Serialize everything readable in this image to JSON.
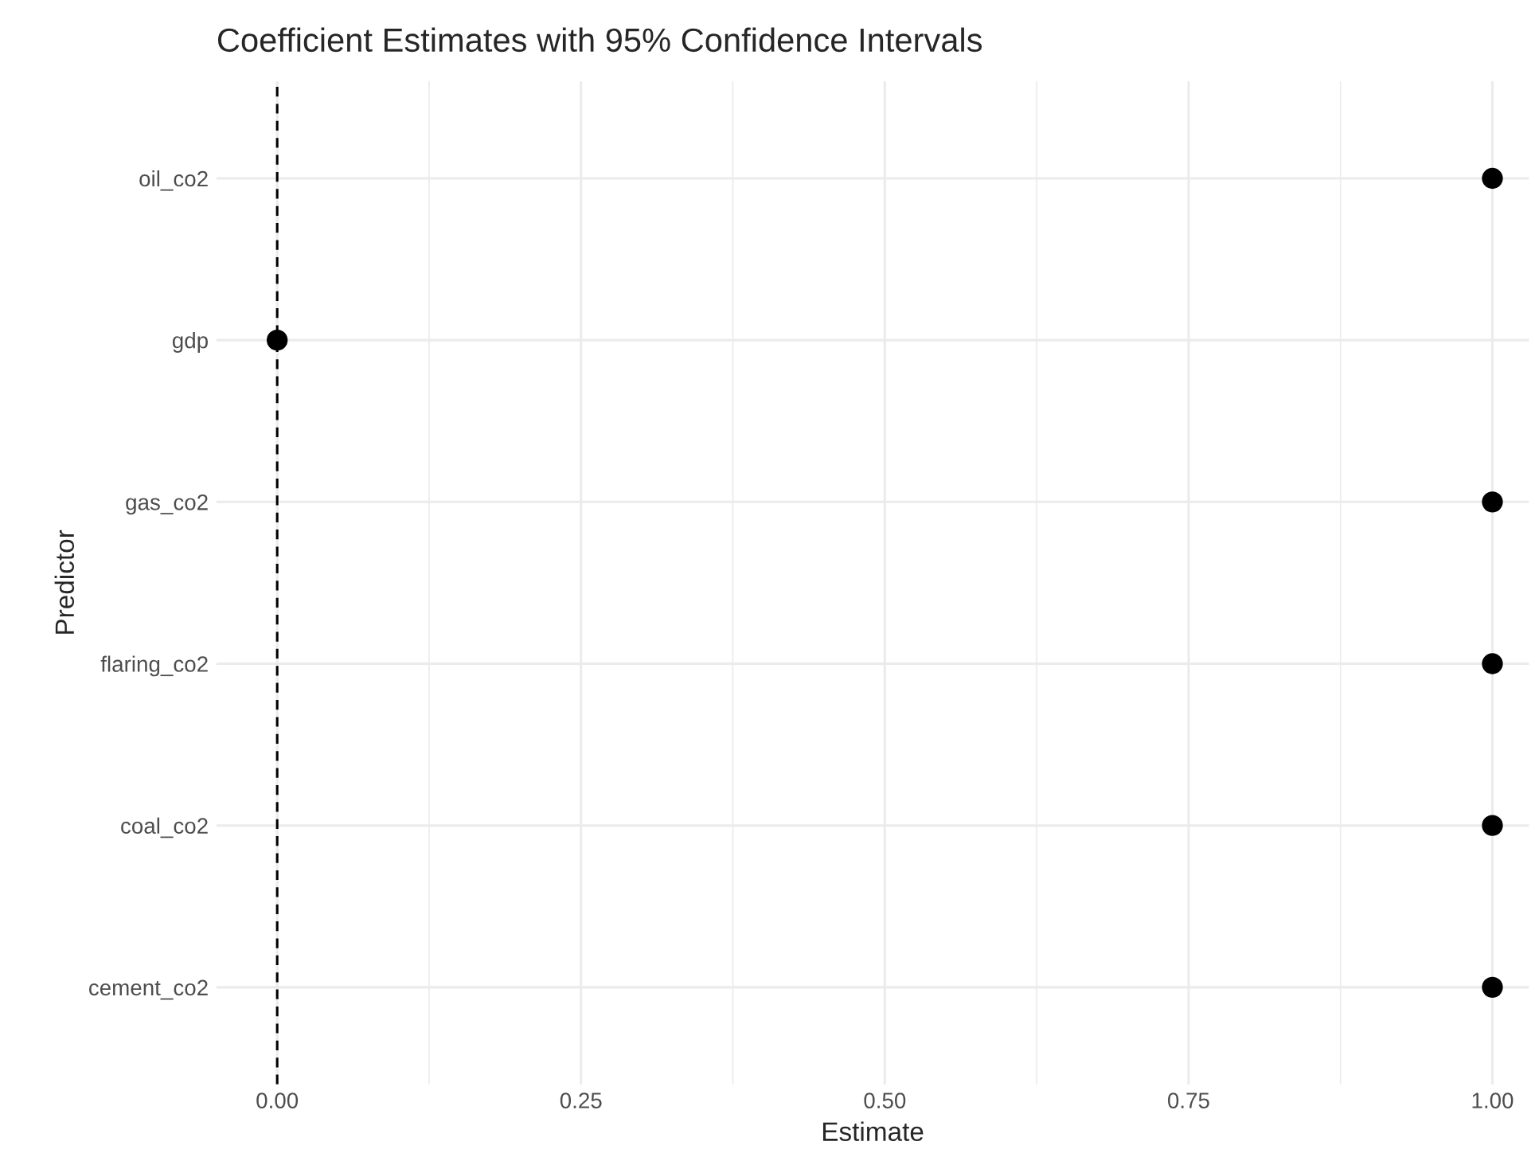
{
  "chart_data": {
    "type": "scatter",
    "orientation": "horizontal",
    "title": "Coefficient Estimates with 95% Confidence Intervals",
    "xlabel": "Estimate",
    "ylabel": "Predictor",
    "categories": [
      "oil_co2",
      "gdp",
      "gas_co2",
      "flaring_co2",
      "coal_co2",
      "cement_co2"
    ],
    "series": [
      {
        "color": "#000000",
        "values": [
          1,
          0,
          1,
          1,
          1,
          1
        ]
      }
    ],
    "xlim": [
      -0.05,
      1.03
    ],
    "xticks": [
      {
        "value": 0,
        "label": "0.00"
      },
      {
        "value": 0.25,
        "label": "0.25"
      },
      {
        "value": 0.5,
        "label": "0.50"
      },
      {
        "value": 0.75,
        "label": "0.75"
      },
      {
        "value": 1,
        "label": "1.00"
      }
    ],
    "ref_lines": [
      {
        "axis": "x",
        "value": 0,
        "line_style": "dashed",
        "color": "#000000"
      }
    ],
    "grid": true,
    "marker": "circle"
  }
}
